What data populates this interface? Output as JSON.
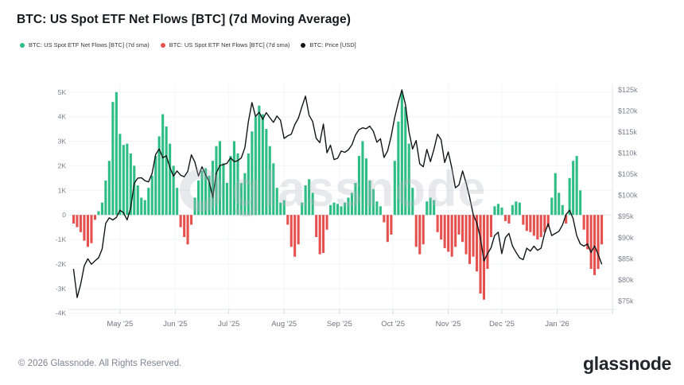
{
  "header": {
    "title": "BTC: US Spot ETF Net Flows [BTC] (7d Moving Average)"
  },
  "legend": {
    "items": [
      {
        "label": "BTC: US Spot ETF Net Flows [BTC] (7d sma)",
        "color": "#2ebd85"
      },
      {
        "label": "BTC: US Spot ETF Net Flows [BTC] (7d sma)",
        "color": "#e5514e"
      },
      {
        "label": "BTC: Price [USD]",
        "color": "#131619"
      }
    ]
  },
  "watermark": {
    "text": "glassnode"
  },
  "footer": {
    "copyright": "© 2026 Glassnode. All Rights Reserved.",
    "logo_text": "glassnode"
  },
  "chart_data": {
    "type": "combo",
    "title": "BTC: US Spot ETF Net Flows [BTC] (7d Moving Average)",
    "legend_position": "top-left",
    "grid": true,
    "start_date": "2025-04-05",
    "interval_days": 2,
    "x_axis": {
      "range_start": "2025-04-03",
      "range_end": "2026-02-01",
      "month_labels": [
        "May '25",
        "Jun '25",
        "Jul '25",
        "Aug '25",
        "Sep '25",
        "Oct '25",
        "Nov '25",
        "Dec '25",
        "Jan '26",
        ""
      ],
      "month_dates": [
        "2025-05-01",
        "2025-06-01",
        "2025-07-01",
        "2025-08-01",
        "2025-09-01",
        "2025-10-01",
        "2025-11-01",
        "2025-12-01",
        "2026-01-01",
        "2026-02-01"
      ]
    },
    "y_axis_left": {
      "tick_labels": [
        "5K",
        "4K",
        "3K",
        "2K",
        "1K",
        "0",
        "-1K",
        "-2K",
        "-3K",
        "-4K"
      ],
      "tick_values": [
        5,
        4,
        3,
        2,
        1,
        0,
        -1,
        -2,
        -3,
        -4
      ],
      "range": [
        -3.85,
        5.35
      ]
    },
    "y_axis_right": {
      "tick_labels": [
        "$125k",
        "$120k",
        "$115k",
        "$110k",
        "$105k",
        "$100k",
        "$95k",
        "$90k",
        "$85k",
        "$80k",
        "$75k"
      ],
      "tick_values": [
        125,
        120,
        115,
        110,
        105,
        100,
        95,
        90,
        85,
        80,
        75
      ],
      "range": [
        73.0,
        126.5
      ]
    },
    "series": [
      {
        "name": "BTC: US Spot ETF Net Flows [BTC] (7d sma)",
        "type": "bar",
        "axis": "left",
        "unit": "K BTC per day",
        "color_positive": "#2ebd85",
        "color_negative": "#e5514e",
        "values": [
          -0.35,
          -0.5,
          -0.7,
          -1.05,
          -1.3,
          -1.15,
          -0.2,
          0.15,
          0.5,
          1.4,
          2.2,
          4.6,
          5.0,
          3.3,
          2.85,
          2.9,
          2.5,
          2.0,
          1.2,
          0.7,
          0.6,
          1.1,
          1.6,
          2.4,
          3.2,
          4.1,
          3.6,
          2.9,
          2.0,
          1.1,
          -0.5,
          -0.9,
          -1.2,
          -0.4,
          0.7,
          1.4,
          1.8,
          1.9,
          1.6,
          2.2,
          2.8,
          3.0,
          2.1,
          1.3,
          2.4,
          3.0,
          2.5,
          1.3,
          1.7,
          2.5,
          3.4,
          4.0,
          4.45,
          4.1,
          3.5,
          2.8,
          2.1,
          1.1,
          0.5,
          0.6,
          -0.4,
          -1.3,
          -1.7,
          -1.2,
          0.5,
          1.2,
          1.45,
          0.9,
          -0.9,
          -1.6,
          -1.55,
          -0.6,
          0.4,
          0.5,
          0.45,
          0.35,
          0.5,
          0.7,
          0.9,
          1.3,
          2.4,
          3.0,
          2.3,
          1.4,
          1.05,
          0.55,
          0.35,
          -0.3,
          -1.1,
          -0.8,
          2.2,
          3.8,
          5.0,
          4.4,
          2.9,
          1.1,
          -1.3,
          -1.6,
          -1.2,
          0.55,
          0.7,
          0.6,
          -0.7,
          -1.0,
          -1.35,
          -1.5,
          -1.7,
          -1.3,
          -0.8,
          -1.1,
          -1.6,
          -2.0,
          -1.7,
          -2.3,
          -3.2,
          -3.45,
          -2.2,
          -0.9,
          0.35,
          0.45,
          0.3,
          -0.25,
          -0.35,
          0.4,
          0.55,
          0.5,
          -0.4,
          -0.65,
          -0.7,
          -0.85,
          -1.0,
          -0.9,
          -0.7,
          -0.5,
          0.7,
          1.7,
          0.9,
          0.4,
          -0.35,
          1.5,
          2.2,
          2.4,
          1.0,
          -0.6,
          -1.4,
          -2.2,
          -2.45,
          -2.2,
          -1.2
        ]
      },
      {
        "name": "BTC: Price [USD]",
        "type": "line",
        "axis": "right",
        "unit": "USD thousands",
        "color": "#131619",
        "values": [
          82.5,
          75.8,
          79.0,
          83.3,
          85.0,
          83.7,
          84.5,
          85.2,
          87.3,
          93.4,
          94.7,
          94.2,
          94.8,
          96.5,
          95.9,
          94.2,
          97.0,
          102.9,
          104.1,
          104.2,
          103.5,
          103.2,
          105.2,
          109.7,
          111.0,
          108.9,
          109.4,
          106.6,
          104.6,
          105.8,
          104.8,
          104.4,
          105.7,
          109.6,
          107.9,
          104.6,
          106.8,
          104.9,
          103.3,
          99.5,
          105.3,
          107.1,
          107.3,
          107.6,
          108.9,
          108.0,
          108.2,
          108.9,
          111.3,
          117.5,
          122.0,
          118.7,
          119.7,
          118.0,
          119.6,
          118.4,
          117.3,
          118.8,
          117.8,
          113.5,
          114.1,
          114.5,
          116.8,
          118.3,
          121.0,
          123.5,
          119.0,
          117.5,
          113.5,
          112.5,
          116.9,
          110.1,
          111.9,
          108.5,
          108.8,
          110.5,
          110.2,
          110.8,
          112.0,
          114.3,
          115.6,
          116.0,
          115.8,
          116.4,
          115.2,
          112.6,
          113.4,
          109.0,
          110.5,
          114.0,
          118.5,
          122.0,
          125.0,
          121.5,
          115.0,
          111.0,
          113.0,
          107.5,
          106.8,
          110.9,
          108.0,
          111.0,
          114.5,
          113.2,
          107.8,
          110.3,
          106.5,
          101.8,
          102.5,
          105.8,
          103.0,
          99.5,
          95.5,
          93.5,
          90.0,
          84.5,
          86.2,
          87.6,
          90.5,
          91.3,
          86.2,
          90.0,
          91.0,
          88.0,
          86.5,
          85.2,
          84.8,
          87.5,
          86.8,
          88.0,
          87.0,
          87.5,
          91.0,
          93.3,
          90.5,
          91.0,
          91.5,
          93.0,
          95.5,
          96.5,
          94.5,
          90.5,
          88.5,
          88.0,
          88.5,
          86.5,
          88.0,
          86.0,
          83.8
        ]
      }
    ]
  }
}
